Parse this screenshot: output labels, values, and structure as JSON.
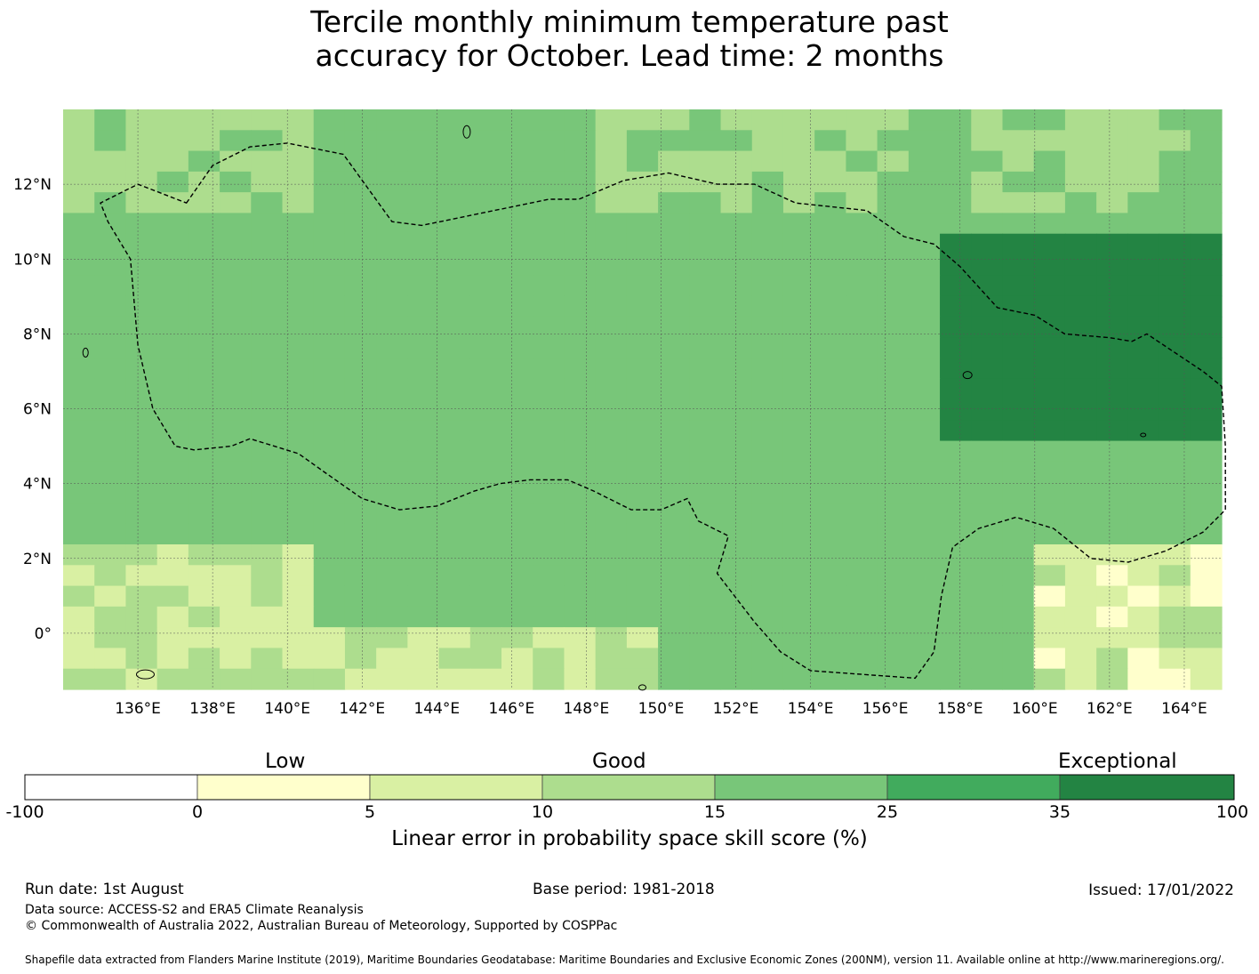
{
  "title": {
    "line1": "Tercile monthly minimum temperature past",
    "line2": "accuracy for October. Lead time: 2 months"
  },
  "map": {
    "lon_ticks": [
      "136°E",
      "138°E",
      "140°E",
      "142°E",
      "144°E",
      "146°E",
      "148°E",
      "150°E",
      "152°E",
      "154°E",
      "156°E",
      "158°E",
      "160°E",
      "162°E",
      "164°E"
    ],
    "lat_ticks": [
      "12°N",
      "10°N",
      "8°N",
      "6°N",
      "4°N",
      "2°N",
      "0°"
    ],
    "lon_range": [
      134.0,
      165.0
    ],
    "lat_range": [
      -1.5,
      14.0
    ]
  },
  "colorbar": {
    "categories": [
      "Low",
      "Good",
      "Exceptional"
    ],
    "ticks": [
      "-100",
      "0",
      "5",
      "10",
      "15",
      "25",
      "35",
      "100"
    ],
    "colors": [
      "#ffffff",
      "#ffffcc",
      "#d9f0a3",
      "#addd8e",
      "#78c679",
      "#41ab5d",
      "#238443"
    ],
    "label": "Linear error in probability space skill score (%)"
  },
  "footer": {
    "run_date": "Run date: 1st August",
    "base_period": "Base period: 1981-2018",
    "issued": "Issued: 17/01/2022",
    "data_source": "Data source: ACCESS-S2 and ERA5 Climate Reanalysis",
    "copyright": "© Commonwealth of Australia 2022, Australian Bureau of Meteorology, Supported by COSPPac",
    "shapefile": "Shapefile data extracted from Flanders Marine Institute (2019), Maritime Boundaries Geodatabase: Maritime Boundaries and Exclusive Economic Zones (200NM), version 11. Available online at http://www.marineregions.org/."
  }
}
